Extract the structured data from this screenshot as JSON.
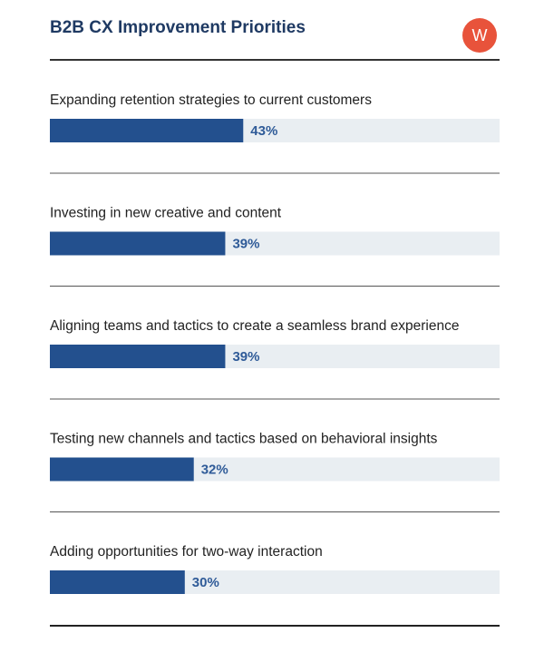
{
  "chart_data": {
    "type": "bar",
    "orientation": "horizontal",
    "title": "B2B CX Improvement Priorities",
    "logo": "W",
    "categories": [
      "Expanding retention strategies to current customers",
      "Investing in new creative and content",
      "Aligning teams and tactics to create a seamless brand experience",
      "Testing new channels and tactics based on behavioral insights",
      "Adding opportunities for two-way interaction"
    ],
    "values": [
      43,
      39,
      39,
      32,
      30
    ],
    "value_labels": [
      "43%",
      "39%",
      "39%",
      "32%",
      "30%"
    ],
    "color": "#23508e",
    "xlim": [
      0,
      100
    ]
  }
}
